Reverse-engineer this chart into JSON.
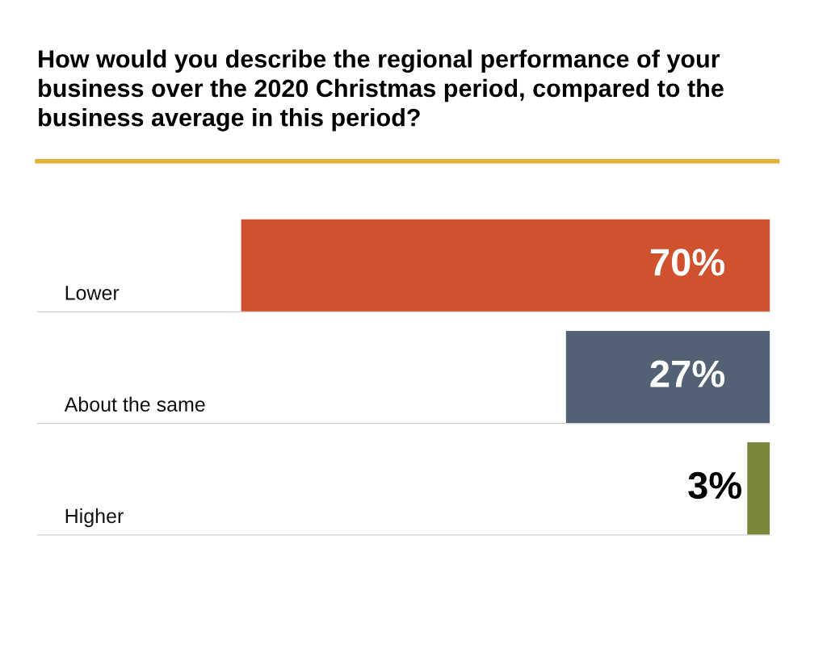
{
  "chart_data": {
    "type": "bar",
    "orientation": "horizontal",
    "title": "How would you describe the regional performance of your business over the 2020 Christmas period, compared to the business average in this period?",
    "categories": [
      "Lower",
      "About the same",
      "Higher"
    ],
    "values": [
      70,
      27,
      3
    ],
    "colors": [
      "#d0512d",
      "#536175",
      "#7b873b"
    ],
    "value_labels": [
      "70%",
      "27%",
      "3%"
    ],
    "xlim": [
      97,
      0
    ],
    "tick_labels": false
  }
}
